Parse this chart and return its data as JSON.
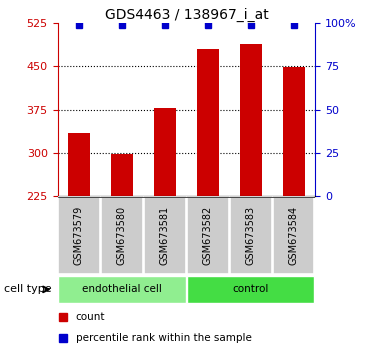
{
  "title": "GDS4463 / 138967_i_at",
  "samples": [
    "GSM673579",
    "GSM673580",
    "GSM673581",
    "GSM673582",
    "GSM673583",
    "GSM673584"
  ],
  "counts": [
    335,
    299,
    378,
    480,
    488,
    449
  ],
  "percentile_ranks": [
    99,
    99,
    99,
    99,
    99,
    99
  ],
  "ylim_left": [
    225,
    525
  ],
  "ylim_right": [
    0,
    100
  ],
  "yticks_left": [
    225,
    300,
    375,
    450,
    525
  ],
  "yticks_right": [
    0,
    25,
    50,
    75,
    100
  ],
  "ytick_right_labels": [
    "0",
    "25",
    "50",
    "75",
    "100%"
  ],
  "bar_color": "#cc0000",
  "dot_color": "#0000cc",
  "bar_width": 0.5,
  "groups": [
    {
      "label": "endothelial cell",
      "indices": [
        0,
        1,
        2
      ],
      "color": "#90ee90"
    },
    {
      "label": "control",
      "indices": [
        3,
        4,
        5
      ],
      "color": "#44dd44"
    }
  ],
  "cell_type_label": "cell type",
  "legend_items": [
    {
      "color": "#cc0000",
      "label": "count"
    },
    {
      "color": "#0000cc",
      "label": "percentile rank within the sample"
    }
  ],
  "tick_label_color_left": "#cc0000",
  "tick_label_color_right": "#0000cc",
  "bg_color": "#ffffff",
  "plot_bg": "#ffffff",
  "tick_area_color": "#cccccc",
  "grid_ticks": [
    300,
    375,
    450
  ]
}
